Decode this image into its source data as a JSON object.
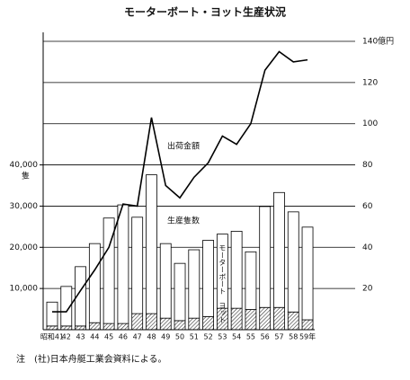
{
  "chart_data": {
    "type": "bar-line",
    "title": "モーターボート・ヨット生産状況",
    "categories": [
      "昭和41",
      "42",
      "43",
      "44",
      "45",
      "46",
      "47",
      "48",
      "49",
      "50",
      "51",
      "52",
      "53",
      "54",
      "55",
      "56",
      "57",
      "58",
      "59年"
    ],
    "series": [
      {
        "name": "ヨット",
        "color": "#333333",
        "pattern": "hatch",
        "values": [
          900,
          900,
          900,
          1700,
          1500,
          1500,
          3900,
          3900,
          2800,
          2200,
          2800,
          3200,
          5200,
          5200,
          4900,
          5400,
          5400,
          4300,
          2400
        ]
      },
      {
        "name": "モーターボート",
        "color": "#ffffff",
        "values": [
          5800,
          9600,
          14400,
          19200,
          25600,
          28800,
          23400,
          33700,
          18100,
          13900,
          16600,
          18500,
          18000,
          18700,
          14000,
          24500,
          27900,
          24300,
          22500
        ]
      },
      {
        "name": "出荷金額",
        "color": "#000000",
        "axis": "y2",
        "values": [
          8.7,
          8.7,
          19,
          29,
          40,
          61,
          60,
          103,
          70,
          64,
          74,
          81,
          94,
          90,
          100,
          126,
          135,
          130,
          131
        ]
      }
    ],
    "bar_label": "生産隻数",
    "y_label": "隻",
    "ylim": [
      0,
      70000
    ],
    "yticks": [
      {
        "value": 10000,
        "label": "10,000"
      },
      {
        "value": 20000,
        "label": "20,000"
      },
      {
        "value": 30000,
        "label": "30,000"
      },
      {
        "value": 40000,
        "label": "40,000"
      }
    ],
    "y2lim": [
      0,
      140
    ],
    "y2ticks": [
      20,
      40,
      60,
      80,
      100,
      120,
      {
        "value": 140,
        "label": "140億円"
      }
    ],
    "grid": true,
    "note": "注　(社)日本舟艇工業会資料による。"
  }
}
